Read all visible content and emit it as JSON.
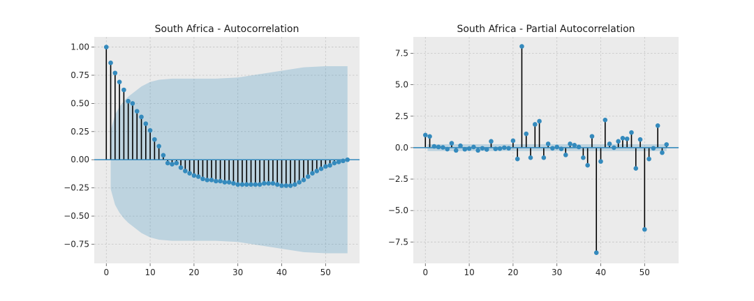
{
  "chart_data": [
    {
      "type": "stem",
      "title": "South Africa - Autocorrelation",
      "xlabel": "",
      "ylabel": "",
      "xlim": [
        -2.75,
        57.75
      ],
      "ylim": [
        -0.92,
        1.09
      ],
      "xticks": [
        0,
        10,
        20,
        30,
        40,
        50
      ],
      "yticks": [
        -0.75,
        -0.5,
        -0.25,
        0.0,
        0.25,
        0.5,
        0.75,
        1.0
      ],
      "ytick_labels": [
        "−0.75",
        "−0.50",
        "−0.25",
        "0.00",
        "0.25",
        "0.50",
        "0.75",
        "1.00"
      ],
      "grid": true,
      "x": [
        0,
        1,
        2,
        3,
        4,
        5,
        6,
        7,
        8,
        9,
        10,
        11,
        12,
        13,
        14,
        15,
        16,
        17,
        18,
        19,
        20,
        21,
        22,
        23,
        24,
        25,
        26,
        27,
        28,
        29,
        30,
        31,
        32,
        33,
        34,
        35,
        36,
        37,
        38,
        39,
        40,
        41,
        42,
        43,
        44,
        45,
        46,
        47,
        48,
        49,
        50,
        51,
        52,
        53,
        54,
        55
      ],
      "values": [
        1.0,
        0.86,
        0.77,
        0.69,
        0.62,
        0.52,
        0.5,
        0.43,
        0.38,
        0.32,
        0.26,
        0.18,
        0.12,
        0.04,
        -0.03,
        -0.04,
        -0.03,
        -0.07,
        -0.1,
        -0.12,
        -0.14,
        -0.15,
        -0.17,
        -0.18,
        -0.18,
        -0.19,
        -0.19,
        -0.2,
        -0.2,
        -0.21,
        -0.22,
        -0.22,
        -0.22,
        -0.22,
        -0.22,
        -0.22,
        -0.21,
        -0.21,
        -0.21,
        -0.22,
        -0.23,
        -0.23,
        -0.23,
        -0.22,
        -0.2,
        -0.18,
        -0.15,
        -0.12,
        -0.1,
        -0.08,
        -0.06,
        -0.05,
        -0.03,
        -0.02,
        -0.01,
        0.0
      ],
      "confidence_band": {
        "x": [
          1,
          2,
          3,
          4,
          5,
          6,
          7,
          8,
          10,
          12,
          15,
          20,
          25,
          30,
          35,
          40,
          45,
          50,
          55
        ],
        "upper": [
          0.26,
          0.4,
          0.47,
          0.52,
          0.56,
          0.59,
          0.62,
          0.65,
          0.69,
          0.71,
          0.72,
          0.72,
          0.72,
          0.73,
          0.76,
          0.79,
          0.82,
          0.83,
          0.83
        ],
        "lower": [
          -0.26,
          -0.4,
          -0.47,
          -0.52,
          -0.56,
          -0.59,
          -0.62,
          -0.65,
          -0.69,
          -0.71,
          -0.72,
          -0.72,
          -0.72,
          -0.73,
          -0.76,
          -0.79,
          -0.82,
          -0.83,
          -0.83
        ]
      },
      "colors": {
        "marker": "#348abd",
        "stem": "#000000",
        "band": "#348abd",
        "background": "#ebebeb"
      }
    },
    {
      "type": "stem",
      "title": "South Africa - Partial Autocorrelation",
      "xlabel": "",
      "ylabel": "",
      "xlim": [
        -2.75,
        57.75
      ],
      "ylim": [
        -9.2,
        8.8
      ],
      "xticks": [
        0,
        10,
        20,
        30,
        40,
        50
      ],
      "yticks": [
        -7.5,
        -5.0,
        -2.5,
        0.0,
        2.5,
        5.0,
        7.5
      ],
      "ytick_labels": [
        "−7.5",
        "−5.0",
        "−2.5",
        "0.0",
        "2.5",
        "5.0",
        "7.5"
      ],
      "grid": true,
      "x": [
        0,
        1,
        2,
        3,
        4,
        5,
        6,
        7,
        8,
        9,
        10,
        11,
        12,
        13,
        14,
        15,
        16,
        17,
        18,
        19,
        20,
        21,
        22,
        23,
        24,
        25,
        26,
        27,
        28,
        29,
        30,
        31,
        32,
        33,
        34,
        35,
        36,
        37,
        38,
        39,
        40,
        41,
        42,
        43,
        44,
        45,
        46,
        47,
        48,
        49,
        50,
        51,
        52,
        53,
        54,
        55
      ],
      "values": [
        1.0,
        0.89,
        0.1,
        0.05,
        0.02,
        -0.12,
        0.35,
        -0.22,
        0.15,
        -0.13,
        -0.08,
        0.05,
        -0.22,
        -0.05,
        -0.15,
        0.5,
        -0.1,
        -0.08,
        0.0,
        -0.05,
        0.55,
        -0.9,
        8.05,
        1.1,
        -0.8,
        1.85,
        2.1,
        -0.8,
        0.3,
        -0.05,
        0.05,
        -0.1,
        -0.58,
        0.3,
        0.2,
        0.05,
        -0.8,
        -1.4,
        0.9,
        -8.35,
        -1.1,
        2.2,
        0.3,
        0.0,
        0.5,
        0.75,
        0.7,
        1.2,
        -1.65,
        0.65,
        -6.5,
        -0.9,
        -0.05,
        1.75,
        -0.4,
        0.25
      ],
      "confidence_band": {
        "x": [
          0.5,
          55
        ],
        "upper": [
          0.27,
          0.27
        ],
        "lower": [
          -0.27,
          -0.27
        ]
      },
      "colors": {
        "marker": "#348abd",
        "stem": "#000000",
        "band": "#348abd",
        "background": "#ebebeb"
      }
    }
  ]
}
